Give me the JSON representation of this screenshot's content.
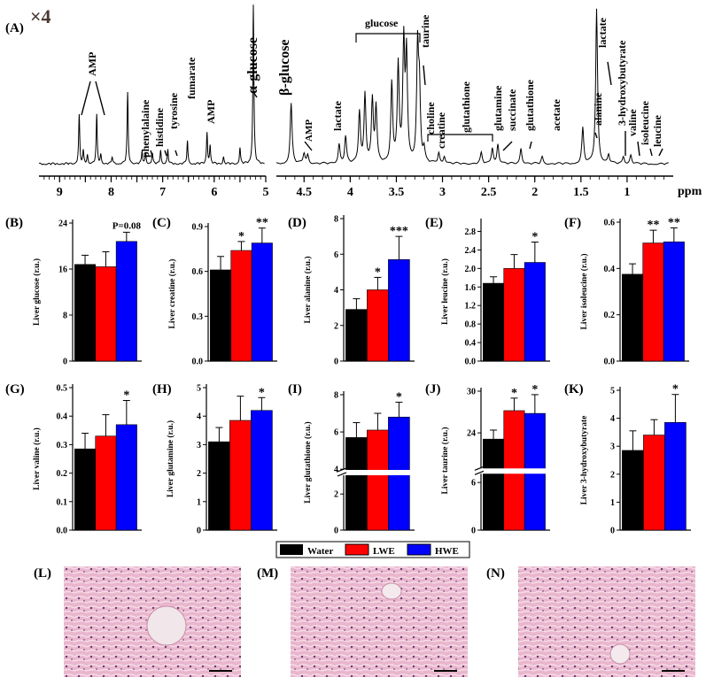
{
  "colors": {
    "water": "#000000",
    "lwe": "#ff0000",
    "hwe": "#0000ff",
    "histo_bg": "#e8b4cc",
    "histo_cell": "#d58fb0"
  },
  "spectrum": {
    "panel_label": "(A)",
    "zoom_label": "×4",
    "unit": "ppm",
    "x_ticks_left": [
      "9",
      "8.5",
      "8",
      "7.5",
      "7",
      "6.5",
      "6",
      "5.5",
      "5"
    ],
    "x_ticks_right": [
      "4.5",
      "4",
      "3.5",
      "3",
      "2.5",
      "2",
      "1.5",
      "1"
    ],
    "peak_labels": [
      "AMP",
      "phenylalaine",
      "histidine",
      "tyrosine",
      "fumarate",
      "AMP",
      "α-glucose",
      "β-glucose",
      "AMP",
      "lactate",
      "glucose",
      "taurine",
      "choline",
      "creatine",
      "glutathione",
      "glutamine",
      "succinate",
      "glutathione",
      "acetate",
      "alanine",
      "lactate",
      "3-hydroxybutyrate",
      "valine",
      "isoleucine",
      "leucine"
    ]
  },
  "legend": {
    "water": "Water",
    "lwe": "LWE",
    "hwe": "HWE"
  },
  "histology": {
    "labels": [
      "(L)",
      "(M)",
      "(N)"
    ]
  },
  "chart_data": [
    {
      "type": "bar",
      "panel": "(B)",
      "ylabel": "Liver glucose (r.u.)",
      "ylim": [
        0,
        24
      ],
      "yticks": [
        "0",
        "8",
        "16",
        "24"
      ],
      "categories": [
        "Water",
        "LWE",
        "HWE"
      ],
      "values": [
        16.8,
        16.4,
        20.8
      ],
      "errors": [
        1.6,
        2.6,
        1.6
      ],
      "annotations": [
        "",
        "",
        "P=0.08"
      ]
    },
    {
      "type": "bar",
      "panel": "(C)",
      "ylabel": "Liver creatine (r.u.)",
      "ylim": [
        0,
        0.9
      ],
      "yticks": [
        "0.0",
        "0.3",
        "0.6",
        "0.9"
      ],
      "categories": [
        "Water",
        "LWE",
        "HWE"
      ],
      "values": [
        0.61,
        0.74,
        0.79
      ],
      "errors": [
        0.09,
        0.06,
        0.1
      ],
      "annotations": [
        "",
        "*",
        "**"
      ]
    },
    {
      "type": "bar",
      "panel": "(D)",
      "ylabel": "Liver alanine (r.u.)",
      "ylim": [
        0,
        8
      ],
      "yticks": [
        "0",
        "2",
        "4",
        "6",
        "8"
      ],
      "categories": [
        "Water",
        "LWE",
        "HWE"
      ],
      "values": [
        2.9,
        4.0,
        5.7
      ],
      "errors": [
        0.6,
        0.7,
        1.3
      ],
      "annotations": [
        "",
        "*",
        "***"
      ]
    },
    {
      "type": "bar",
      "panel": "(E)",
      "ylabel": "Liver leucine (r.u.)",
      "ylim": [
        0,
        3.0
      ],
      "yticks": [
        "0.0",
        "0.4",
        "0.8",
        "1.2",
        "1.6",
        "2.0",
        "2.4",
        "2.8"
      ],
      "categories": [
        "Water",
        "LWE",
        "HWE"
      ],
      "values": [
        1.68,
        2.0,
        2.13
      ],
      "errors": [
        0.14,
        0.3,
        0.44
      ],
      "annotations": [
        "",
        "",
        "*"
      ]
    },
    {
      "type": "bar",
      "panel": "(F)",
      "ylabel": "Liver isoleucine (r.u.)",
      "ylim": [
        0,
        0.6
      ],
      "yticks": [
        "0.0",
        "0.2",
        "0.4",
        "0.6"
      ],
      "categories": [
        "Water",
        "LWE",
        "HWE"
      ],
      "values": [
        0.375,
        0.51,
        0.515
      ],
      "errors": [
        0.045,
        0.055,
        0.06
      ],
      "annotations": [
        "",
        "**",
        "**"
      ]
    },
    {
      "type": "bar",
      "panel": "(G)",
      "ylabel": "Liver valine (r.u.)",
      "ylim": [
        0,
        0.5
      ],
      "yticks": [
        "0.0",
        "0.1",
        "0.2",
        "0.3",
        "0.4",
        "0.5"
      ],
      "categories": [
        "Water",
        "LWE",
        "HWE"
      ],
      "values": [
        0.285,
        0.33,
        0.37
      ],
      "errors": [
        0.055,
        0.075,
        0.085
      ],
      "annotations": [
        "",
        "",
        "*"
      ]
    },
    {
      "type": "bar",
      "panel": "(H)",
      "ylabel": "Liver glutamine (r.u.)",
      "ylim": [
        0,
        5
      ],
      "yticks": [
        "0",
        "1",
        "2",
        "3",
        "4",
        "5"
      ],
      "categories": [
        "Water",
        "LWE",
        "HWE"
      ],
      "values": [
        3.1,
        3.85,
        4.2
      ],
      "errors": [
        0.5,
        0.85,
        0.45
      ],
      "annotations": [
        "",
        "",
        "*"
      ]
    },
    {
      "type": "bar",
      "panel": "(I)",
      "ylabel": "Liver glutathione (r.u.)",
      "broken_axis": true,
      "ylim_low": [
        0,
        3
      ],
      "ylim_high": [
        4,
        8
      ],
      "yticks": [
        "0",
        "2",
        "4",
        "6",
        "8"
      ],
      "categories": [
        "Water",
        "LWE",
        "HWE"
      ],
      "values": [
        5.7,
        6.1,
        6.8
      ],
      "errors": [
        0.8,
        0.9,
        0.8
      ],
      "annotations": [
        "",
        "",
        "*"
      ]
    },
    {
      "type": "bar",
      "panel": "(J)",
      "ylabel": "Liver taurine (r.u.)",
      "broken_axis": true,
      "ylim_low": [
        0,
        7
      ],
      "ylim_high": [
        19,
        30
      ],
      "yticks": [
        "0",
        "6",
        "24",
        "30"
      ],
      "categories": [
        "Water",
        "LWE",
        "HWE"
      ],
      "values": [
        23.1,
        27.2,
        26.8
      ],
      "errors": [
        1.3,
        1.8,
        2.7
      ],
      "annotations": [
        "",
        "*",
        "*"
      ]
    },
    {
      "type": "bar",
      "panel": "(K)",
      "ylabel": "Liver 3-hydroxybutyrate",
      "ylim": [
        0,
        5
      ],
      "yticks": [
        "0",
        "1",
        "2",
        "3",
        "4",
        "5"
      ],
      "categories": [
        "Water",
        "LWE",
        "HWE"
      ],
      "values": [
        2.85,
        3.4,
        3.85
      ],
      "errors": [
        0.7,
        0.55,
        1.0
      ],
      "annotations": [
        "",
        "",
        "*"
      ]
    }
  ]
}
